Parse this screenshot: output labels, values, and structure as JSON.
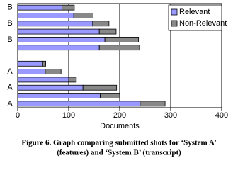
{
  "chart_data": {
    "type": "stacked-bar-horizontal",
    "categories": [
      "B",
      null,
      "B",
      null,
      "B",
      null,
      null,
      null,
      "A",
      null,
      "A",
      null,
      "A"
    ],
    "series": [
      {
        "name": "Relevant",
        "color": "#9999ff",
        "values": [
          87,
          110,
          147,
          160,
          171,
          160,
          null,
          49,
          54,
          100,
          128,
          162,
          240
        ]
      },
      {
        "name": "Non-Relevant",
        "color": "#888888",
        "values": [
          24,
          38,
          32,
          33,
          66,
          79,
          null,
          6,
          31,
          15,
          66,
          38,
          49
        ]
      }
    ],
    "xlim": [
      0,
      400
    ],
    "xticks": [
      0,
      100,
      200,
      300,
      400
    ],
    "grid": true,
    "xlabel": "Documents",
    "legend": "upper right",
    "caption": [
      "Figure 6. Graph comparing submitted shots for ‘System A’",
      "(features) and ‘System B’ (transcript)"
    ]
  }
}
